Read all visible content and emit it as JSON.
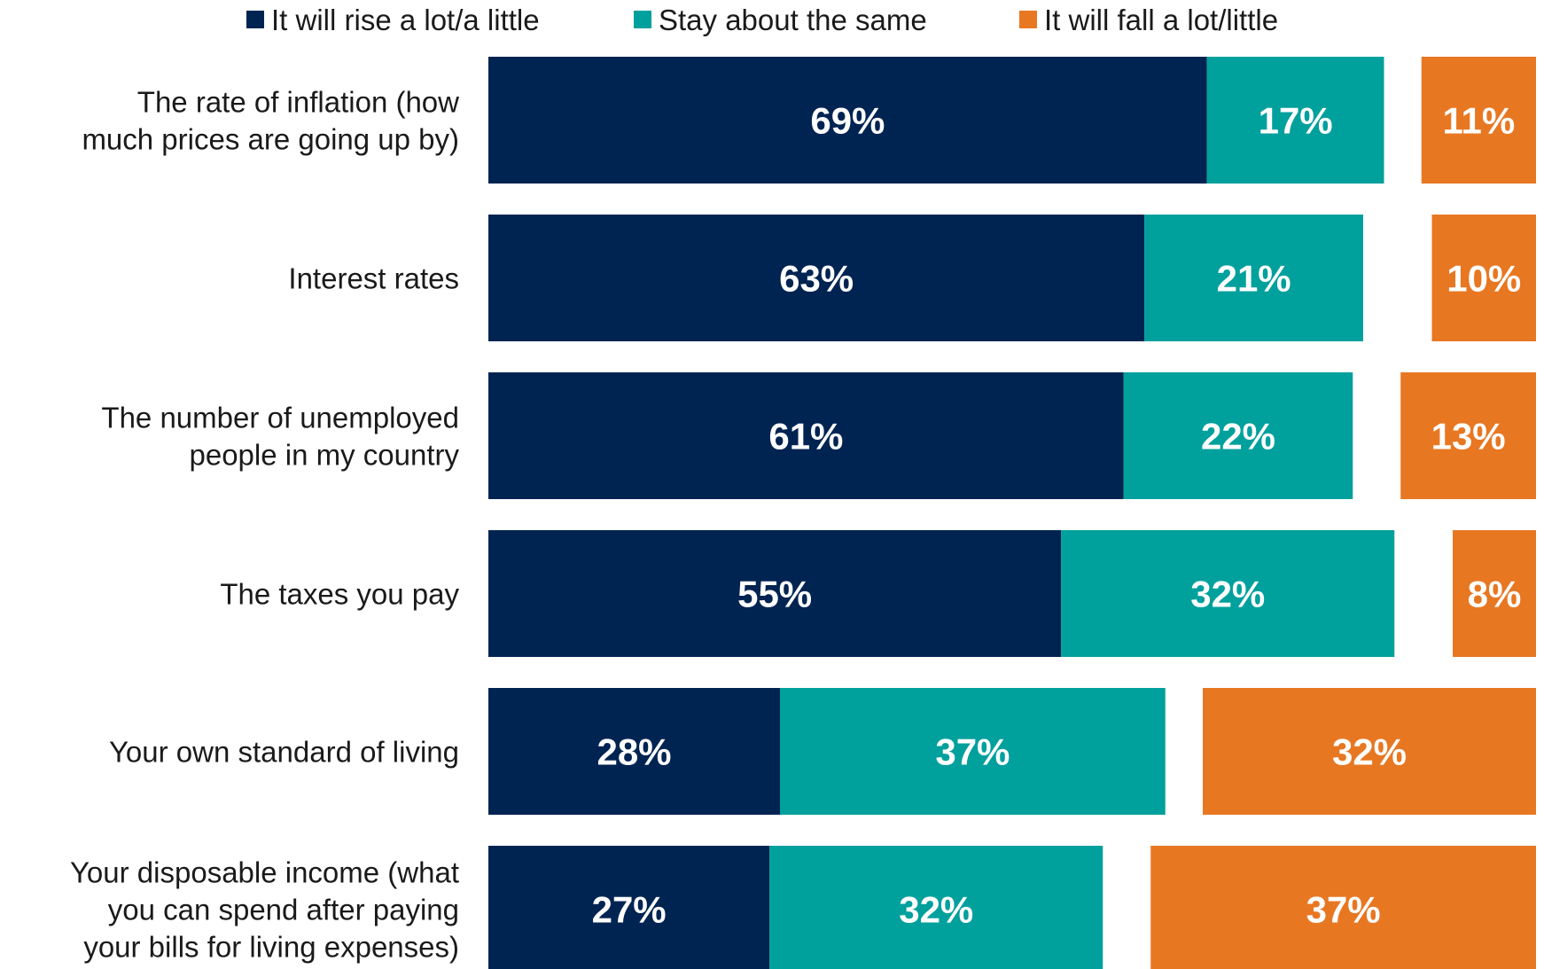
{
  "chart_data": {
    "type": "bar",
    "orientation": "horizontal",
    "stacked": "diverging",
    "legend_position": "top",
    "grid": false,
    "unit": "%",
    "categories": [
      [
        "The rate of inflation (how",
        "much prices are going up by)"
      ],
      [
        "Interest rates"
      ],
      [
        "The number of unemployed",
        "people in my country"
      ],
      [
        "The taxes you pay"
      ],
      [
        "Your own standard of living"
      ],
      [
        "Your disposable income (what",
        "you can spend after paying",
        "your bills for living expenses)"
      ]
    ],
    "series": [
      {
        "name": "It will rise a lot/a little",
        "color": "#002452",
        "values": [
          69,
          63,
          61,
          55,
          28,
          27
        ]
      },
      {
        "name": "Stay about the same",
        "color": "#00a09d",
        "values": [
          17,
          21,
          22,
          32,
          37,
          32
        ]
      },
      {
        "name": "It will fall a lot/little",
        "color": "#e87722",
        "values": [
          11,
          10,
          13,
          8,
          32,
          37
        ]
      }
    ]
  }
}
